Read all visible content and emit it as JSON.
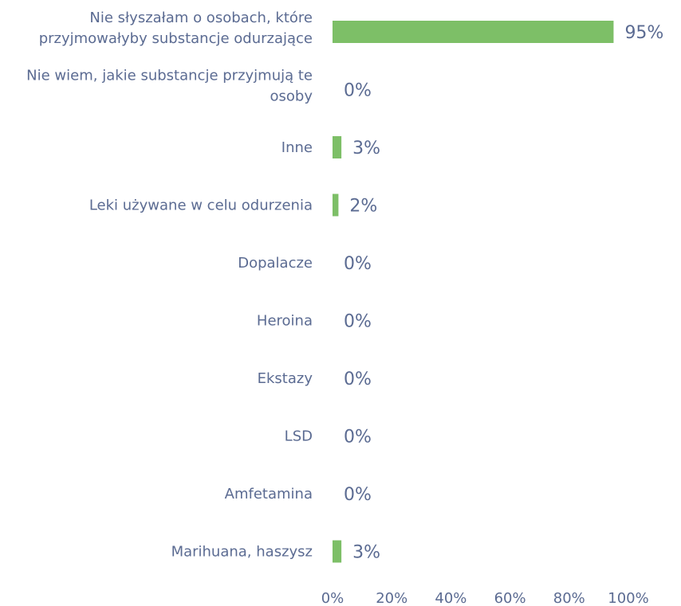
{
  "chart_data": {
    "type": "bar",
    "orientation": "horizontal",
    "categories": [
      [
        "Nie słyszałam o osobach, które",
        "przyjmowałyby substancje odurzające"
      ],
      [
        "Nie wiem, jakie substancje przyjmują te",
        "osoby"
      ],
      [
        "Inne"
      ],
      [
        "Leki używane w celu odurzenia"
      ],
      [
        "Dopalacze"
      ],
      [
        "Heroina"
      ],
      [
        "Ekstazy"
      ],
      [
        "LSD"
      ],
      [
        "Amfetamina"
      ],
      [
        "Marihuana, haszysz"
      ]
    ],
    "values": [
      95,
      0,
      3,
      2,
      0,
      0,
      0,
      0,
      0,
      3
    ],
    "value_labels": [
      "95%",
      "0%",
      "3%",
      "2%",
      "0%",
      "0%",
      "0%",
      "0%",
      "0%",
      "3%"
    ],
    "xticks": [
      0,
      20,
      40,
      60,
      80,
      100
    ],
    "xtick_labels": [
      "0%",
      "20%",
      "40%",
      "60%",
      "80%",
      "100%"
    ],
    "xlim": [
      0,
      100
    ],
    "title": "",
    "xlabel": "",
    "ylabel": "",
    "grid": false,
    "legend": "none",
    "bar_color": "#7dbf67",
    "text_color": "#5b6b92"
  }
}
